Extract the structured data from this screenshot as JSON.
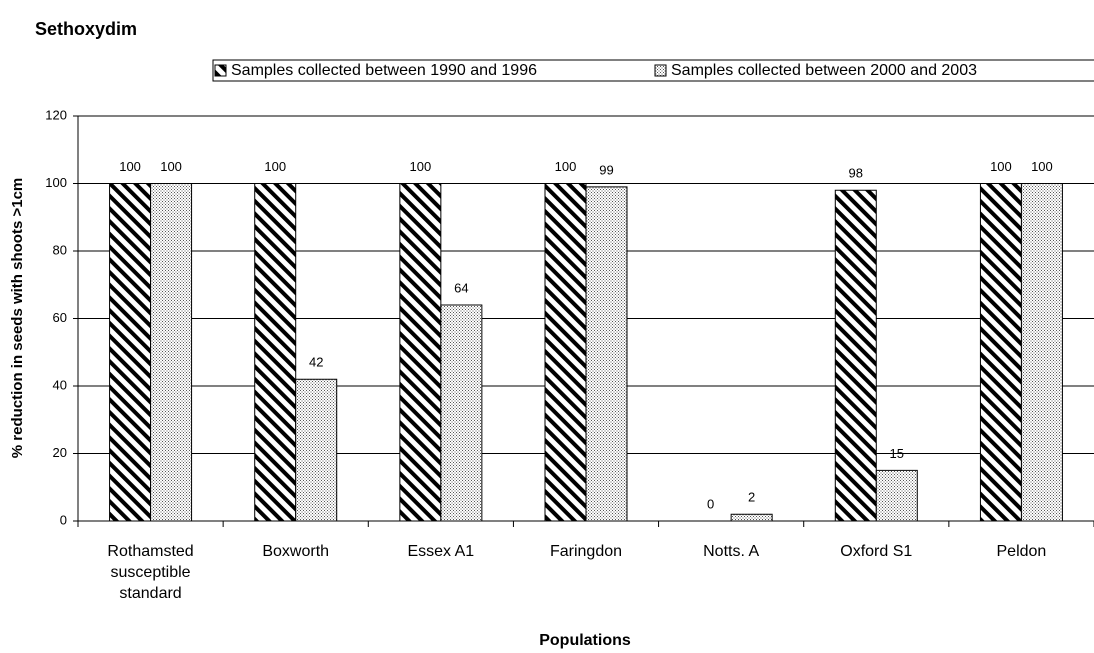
{
  "chart_data": {
    "type": "bar",
    "title": "Sethoxydim",
    "y_label": "% reduction in seeds with shoots >1cm",
    "x_label": "Populations",
    "categories": [
      "Rothamsted susceptible standard",
      "Boxworth",
      "Essex A1",
      "Faringdon",
      "Notts. A",
      "Oxford S1",
      "Peldon"
    ],
    "series": [
      {
        "name": "Samples collected between 1990 and 1996",
        "color": "#000000",
        "pattern": "diagonal",
        "values": [
          100,
          100,
          100,
          100,
          0,
          98,
          100
        ]
      },
      {
        "name": "Samples collected between 2000 and 2003",
        "color": "#555555",
        "pattern": "dots",
        "values": [
          100,
          42,
          64,
          99,
          2,
          15,
          100
        ]
      }
    ],
    "ylim": [
      0,
      120
    ],
    "yticks": [
      0,
      20,
      40,
      60,
      80,
      100,
      120
    ],
    "grid": true,
    "legend": "top"
  }
}
